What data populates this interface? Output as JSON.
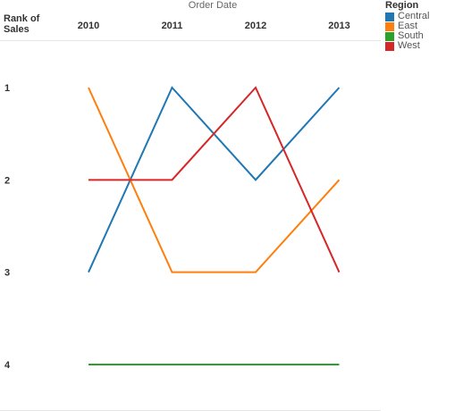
{
  "chart_data": {
    "type": "line",
    "title": "",
    "column_header": "Order Date",
    "ylabel": "Rank of Sales",
    "categories": [
      "2010",
      "2011",
      "2012",
      "2013"
    ],
    "y_ticks": [
      "1",
      "2",
      "3",
      "4"
    ],
    "ylim": [
      1,
      4
    ],
    "y_reversed": true,
    "grid": false,
    "legend_position": "top-right",
    "legend_title": "Region",
    "series": [
      {
        "name": "Central",
        "color": "#1f77b4",
        "values": [
          3,
          1,
          2,
          1
        ]
      },
      {
        "name": "East",
        "color": "#ff7f0e",
        "values": [
          1,
          3,
          3,
          2
        ]
      },
      {
        "name": "South",
        "color": "#2ca02c",
        "values": [
          4,
          4,
          4,
          4
        ]
      },
      {
        "name": "West",
        "color": "#d62728",
        "values": [
          2,
          2,
          1,
          3
        ]
      }
    ]
  }
}
